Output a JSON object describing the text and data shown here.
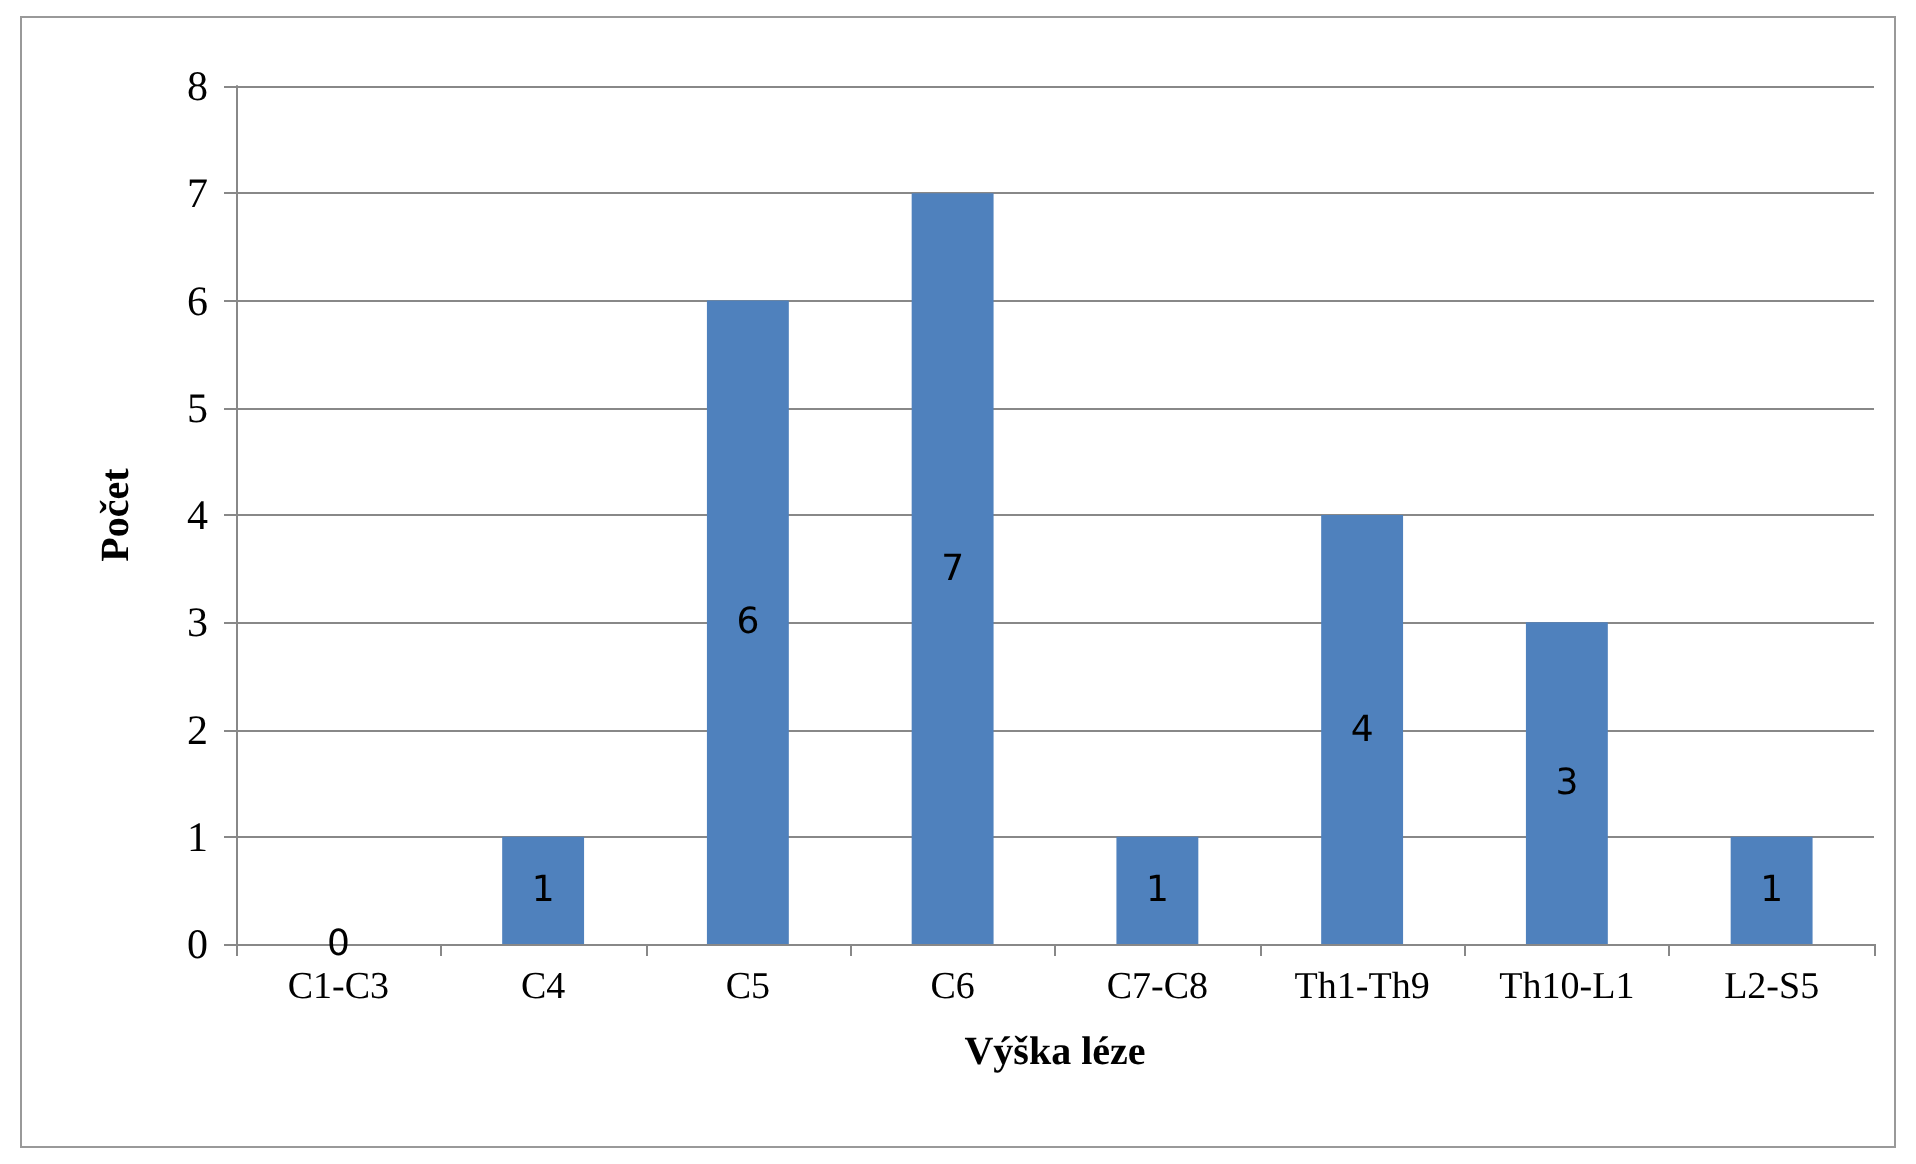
{
  "chart_data": {
    "type": "bar",
    "xlabel": "Výška léze",
    "ylabel": "Počet",
    "categories": [
      "C1-C3",
      "C4",
      "C5",
      "C6",
      "C7-C8",
      "Th1-Th9",
      "Th10-L1",
      "L2-S5"
    ],
    "values": [
      0,
      1,
      6,
      7,
      1,
      4,
      3,
      1
    ],
    "color": "#4f81bd",
    "ylim": [
      0,
      8
    ],
    "yticks": [
      0,
      1,
      2,
      3,
      4,
      5,
      6,
      7,
      8
    ],
    "grid": "y",
    "data_labels": true
  }
}
